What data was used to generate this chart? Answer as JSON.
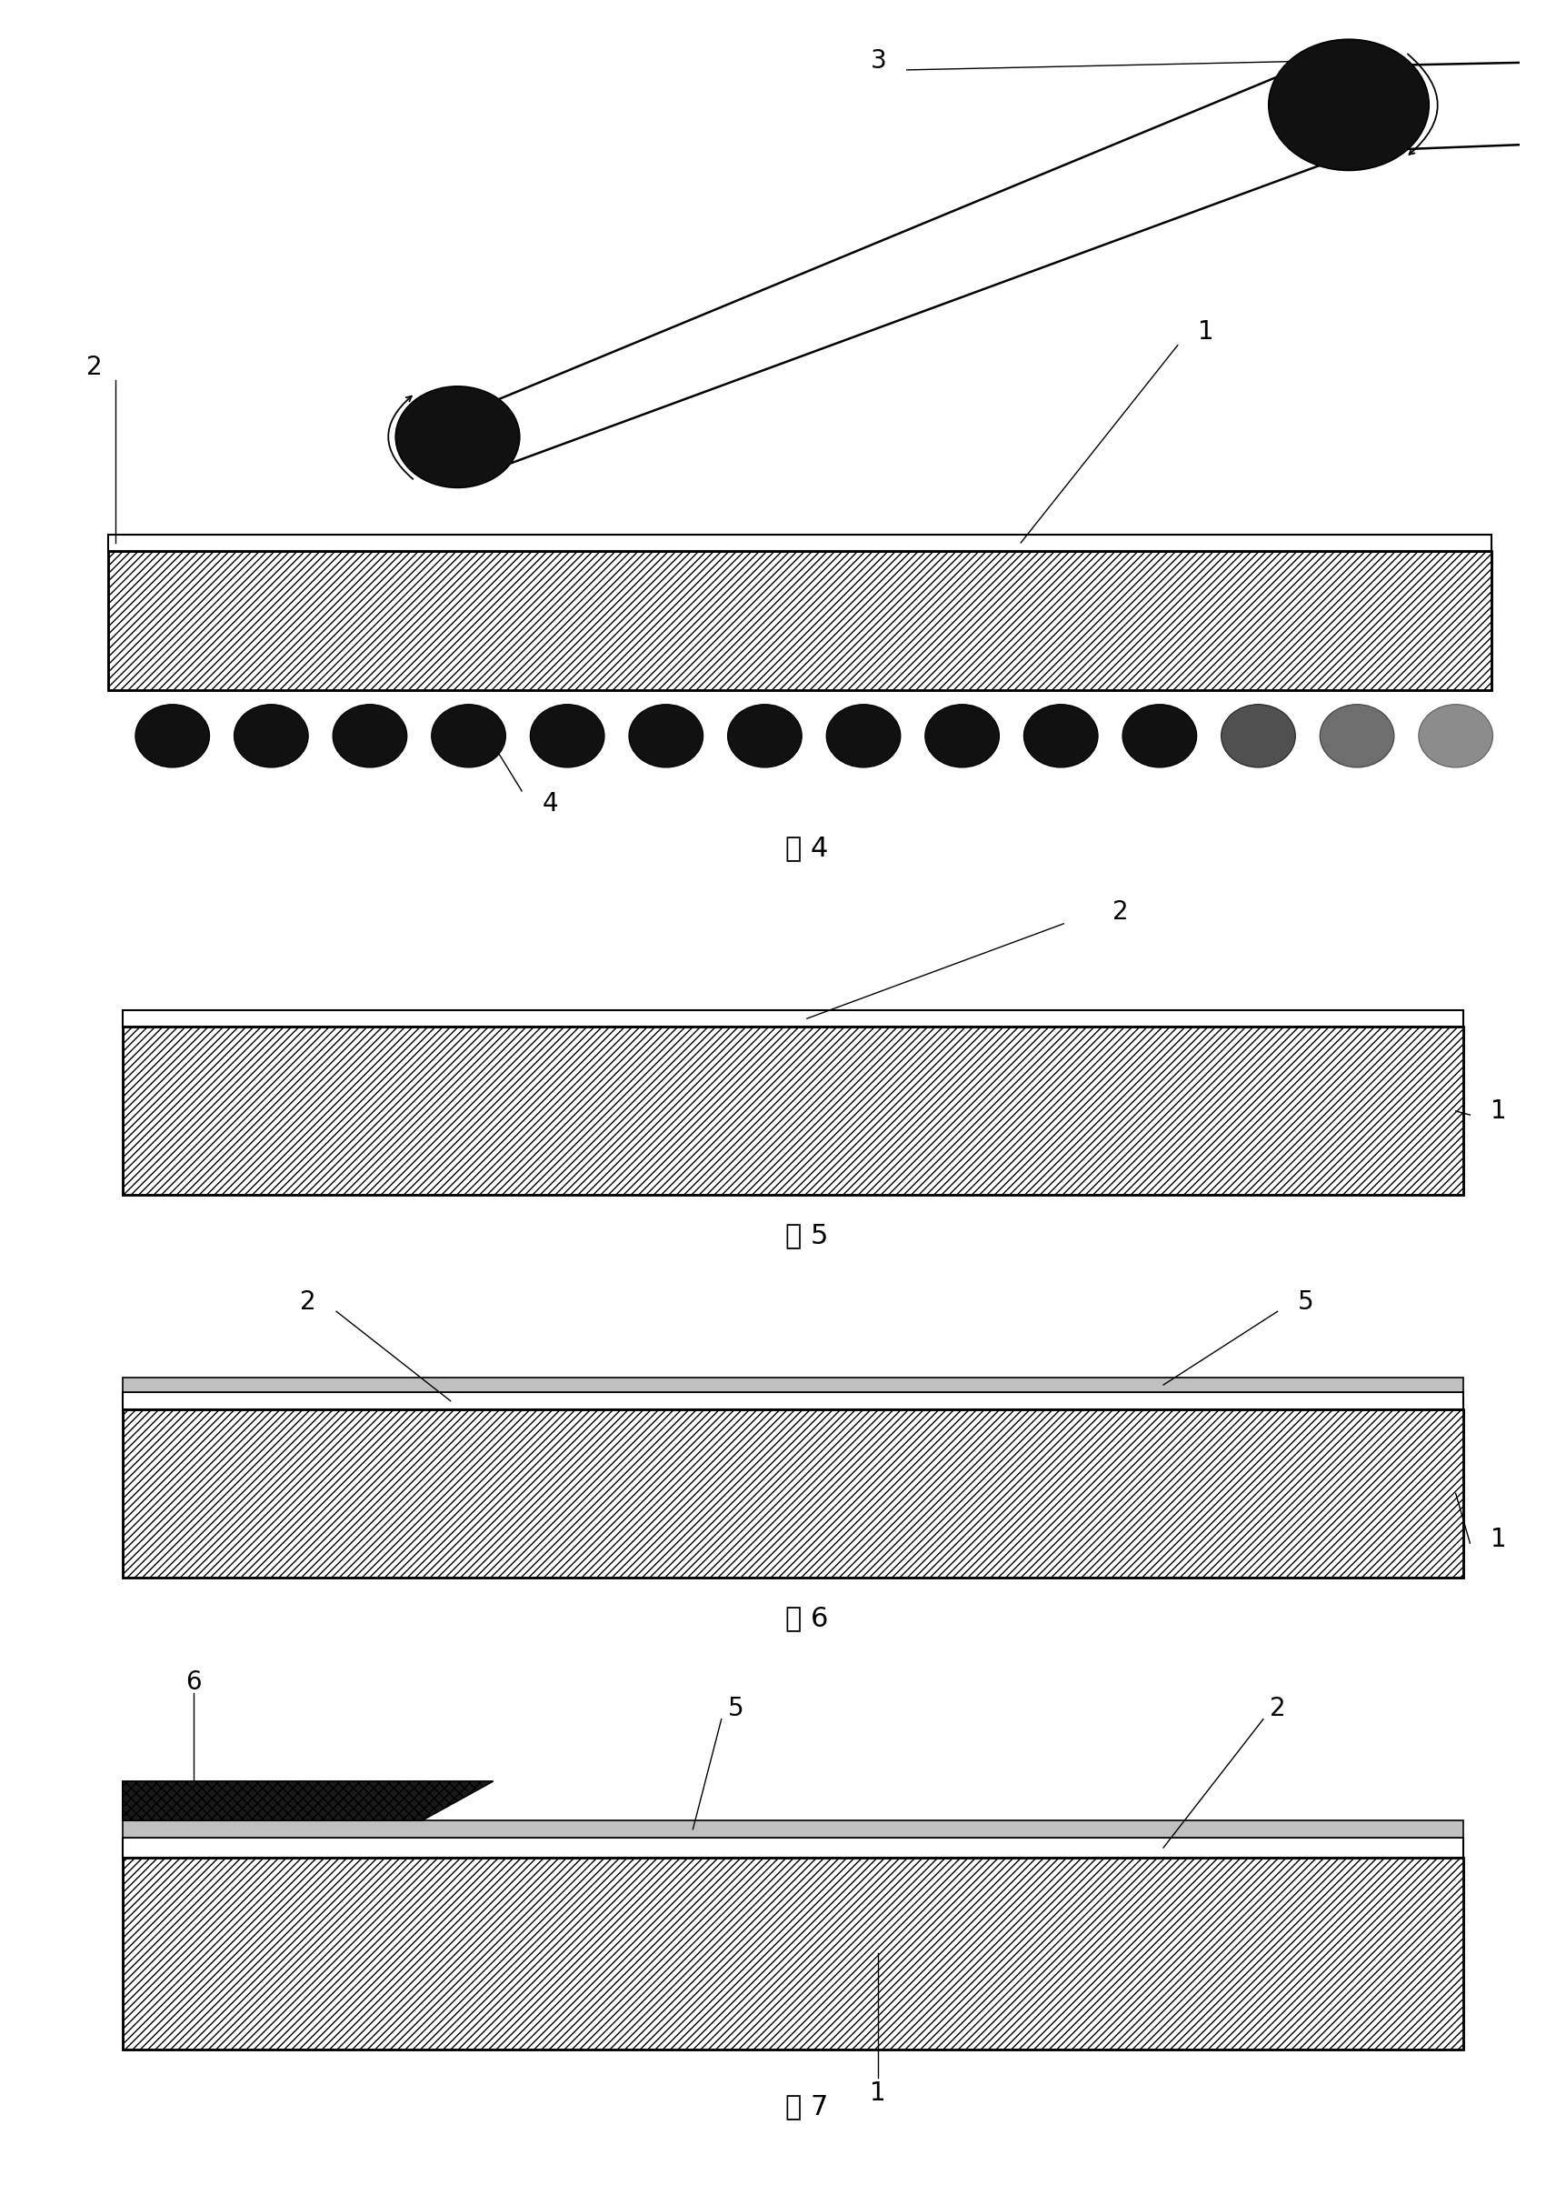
{
  "bg_color": "#ffffff",
  "fig_label4": "图 4",
  "fig_label5": "图 5",
  "fig_label6": "图 6",
  "fig_label7": "图 7",
  "hatch_color": "#666666",
  "substrate_face": "#ffffff",
  "thin_layer_face": "#ffffff",
  "gray_layer_face": "#c8c8c8",
  "black_roller": "#111111",
  "island_face": "#222222"
}
